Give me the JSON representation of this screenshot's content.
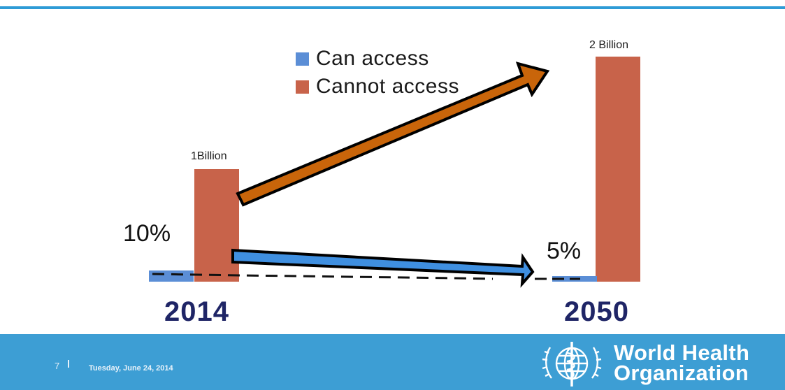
{
  "chart_data": {
    "type": "bar",
    "categories": [
      "2014",
      "2050"
    ],
    "series": [
      {
        "name": "Can access",
        "values": [
          10,
          5
        ],
        "color": "#5b8ed6"
      },
      {
        "name": "Cannot access",
        "values": [
          1,
          2
        ],
        "color": "#c8634a"
      }
    ],
    "bar_value_labels": [
      "1Billion",
      "2 Billion"
    ],
    "percent_labels": [
      "10%",
      "5%"
    ],
    "legend_position": "top-center",
    "annotations": [
      "orange arrow rising from 2014 to 2050",
      "blue arrow falling from 2014 to 2050",
      "dashed baseline"
    ]
  },
  "footer": {
    "page_number": "7",
    "date": "Tuesday, June 24, 2014",
    "org_line1": "World Health",
    "org_line2": "Organization"
  },
  "colors": {
    "accent": "#3d9ed4",
    "year_text": "#1f2566",
    "orange_arrow": "#c9650a",
    "blue_arrow": "#3f8fe0"
  }
}
